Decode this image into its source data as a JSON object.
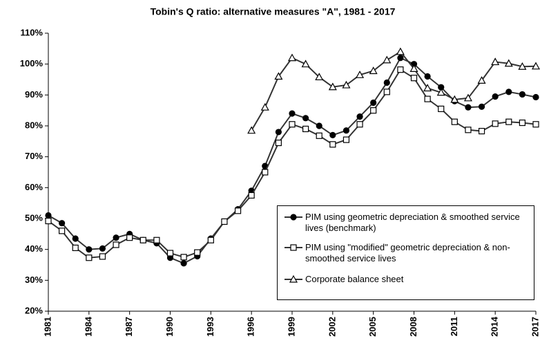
{
  "chart_data": {
    "type": "line",
    "title": "Tobin's Q ratio: alternative measures \"A\", 1981 - 2017",
    "x": [
      1981,
      1982,
      1983,
      1984,
      1985,
      1986,
      1987,
      1988,
      1989,
      1990,
      1991,
      1992,
      1993,
      1994,
      1995,
      1996,
      1997,
      1998,
      1999,
      2000,
      2001,
      2002,
      2003,
      2004,
      2005,
      2006,
      2007,
      2008,
      2009,
      2010,
      2011,
      2012,
      2013,
      2014,
      2015,
      2016,
      2017
    ],
    "xlim": [
      1981,
      2017
    ],
    "xticks": [
      1981,
      1984,
      1987,
      1990,
      1993,
      1996,
      1999,
      2002,
      2005,
      2008,
      2011,
      2014,
      2017
    ],
    "ylim": [
      20,
      110
    ],
    "yticks": [
      {
        "value": 20,
        "label": "20%"
      },
      {
        "value": 30,
        "label": "30%"
      },
      {
        "value": 40,
        "label": "40%"
      },
      {
        "value": 50,
        "label": "50%"
      },
      {
        "value": 60,
        "label": "60%"
      },
      {
        "value": 70,
        "label": "70%"
      },
      {
        "value": 80,
        "label": "80%"
      },
      {
        "value": 90,
        "label": "90%"
      },
      {
        "value": 100,
        "label": "100%"
      },
      {
        "value": 110,
        "label": "110%"
      }
    ],
    "series": [
      {
        "name": "PIM using geometric depreciation & smoothed service lives (benchmark)",
        "color": "#333333",
        "marker": "circle",
        "values": [
          51,
          48.5,
          43.5,
          40,
          40.3,
          43.8,
          45,
          43,
          42,
          37.3,
          35.5,
          37.8,
          43.5,
          49,
          53,
          59,
          67,
          78,
          84,
          82.5,
          80,
          77,
          78.5,
          83,
          87.5,
          94,
          102,
          100,
          96,
          92.5,
          88,
          86,
          86.2,
          89.5,
          91,
          90.2,
          89.3
        ]
      },
      {
        "name": "PIM using \"modified\" geometric depreciation & non-smoothed service lives",
        "color": "#333333",
        "marker": "square",
        "values": [
          49.2,
          46,
          40.5,
          37.3,
          37.7,
          41.5,
          43.8,
          43,
          43,
          38.8,
          37.5,
          39,
          43,
          49,
          52.5,
          57.5,
          65,
          74.5,
          80.5,
          79,
          76.8,
          74,
          75.5,
          80.5,
          85,
          91,
          98.2,
          95.5,
          88.7,
          85.5,
          81.3,
          78.7,
          78.3,
          80.7,
          81.3,
          81,
          80.5
        ]
      },
      {
        "name": "Corporate balance sheet",
        "color": "#333333",
        "marker": "triangle",
        "values": [
          null,
          null,
          null,
          null,
          null,
          null,
          null,
          null,
          null,
          null,
          null,
          null,
          null,
          null,
          null,
          78.5,
          86,
          96,
          102,
          100,
          95.8,
          92.6,
          93.2,
          96.5,
          97.8,
          101.3,
          104,
          98.5,
          92.2,
          90.8,
          88.5,
          89,
          94.7,
          100.7,
          100.2,
          99.2,
          99.3
        ]
      }
    ],
    "legend": "lower-right"
  }
}
